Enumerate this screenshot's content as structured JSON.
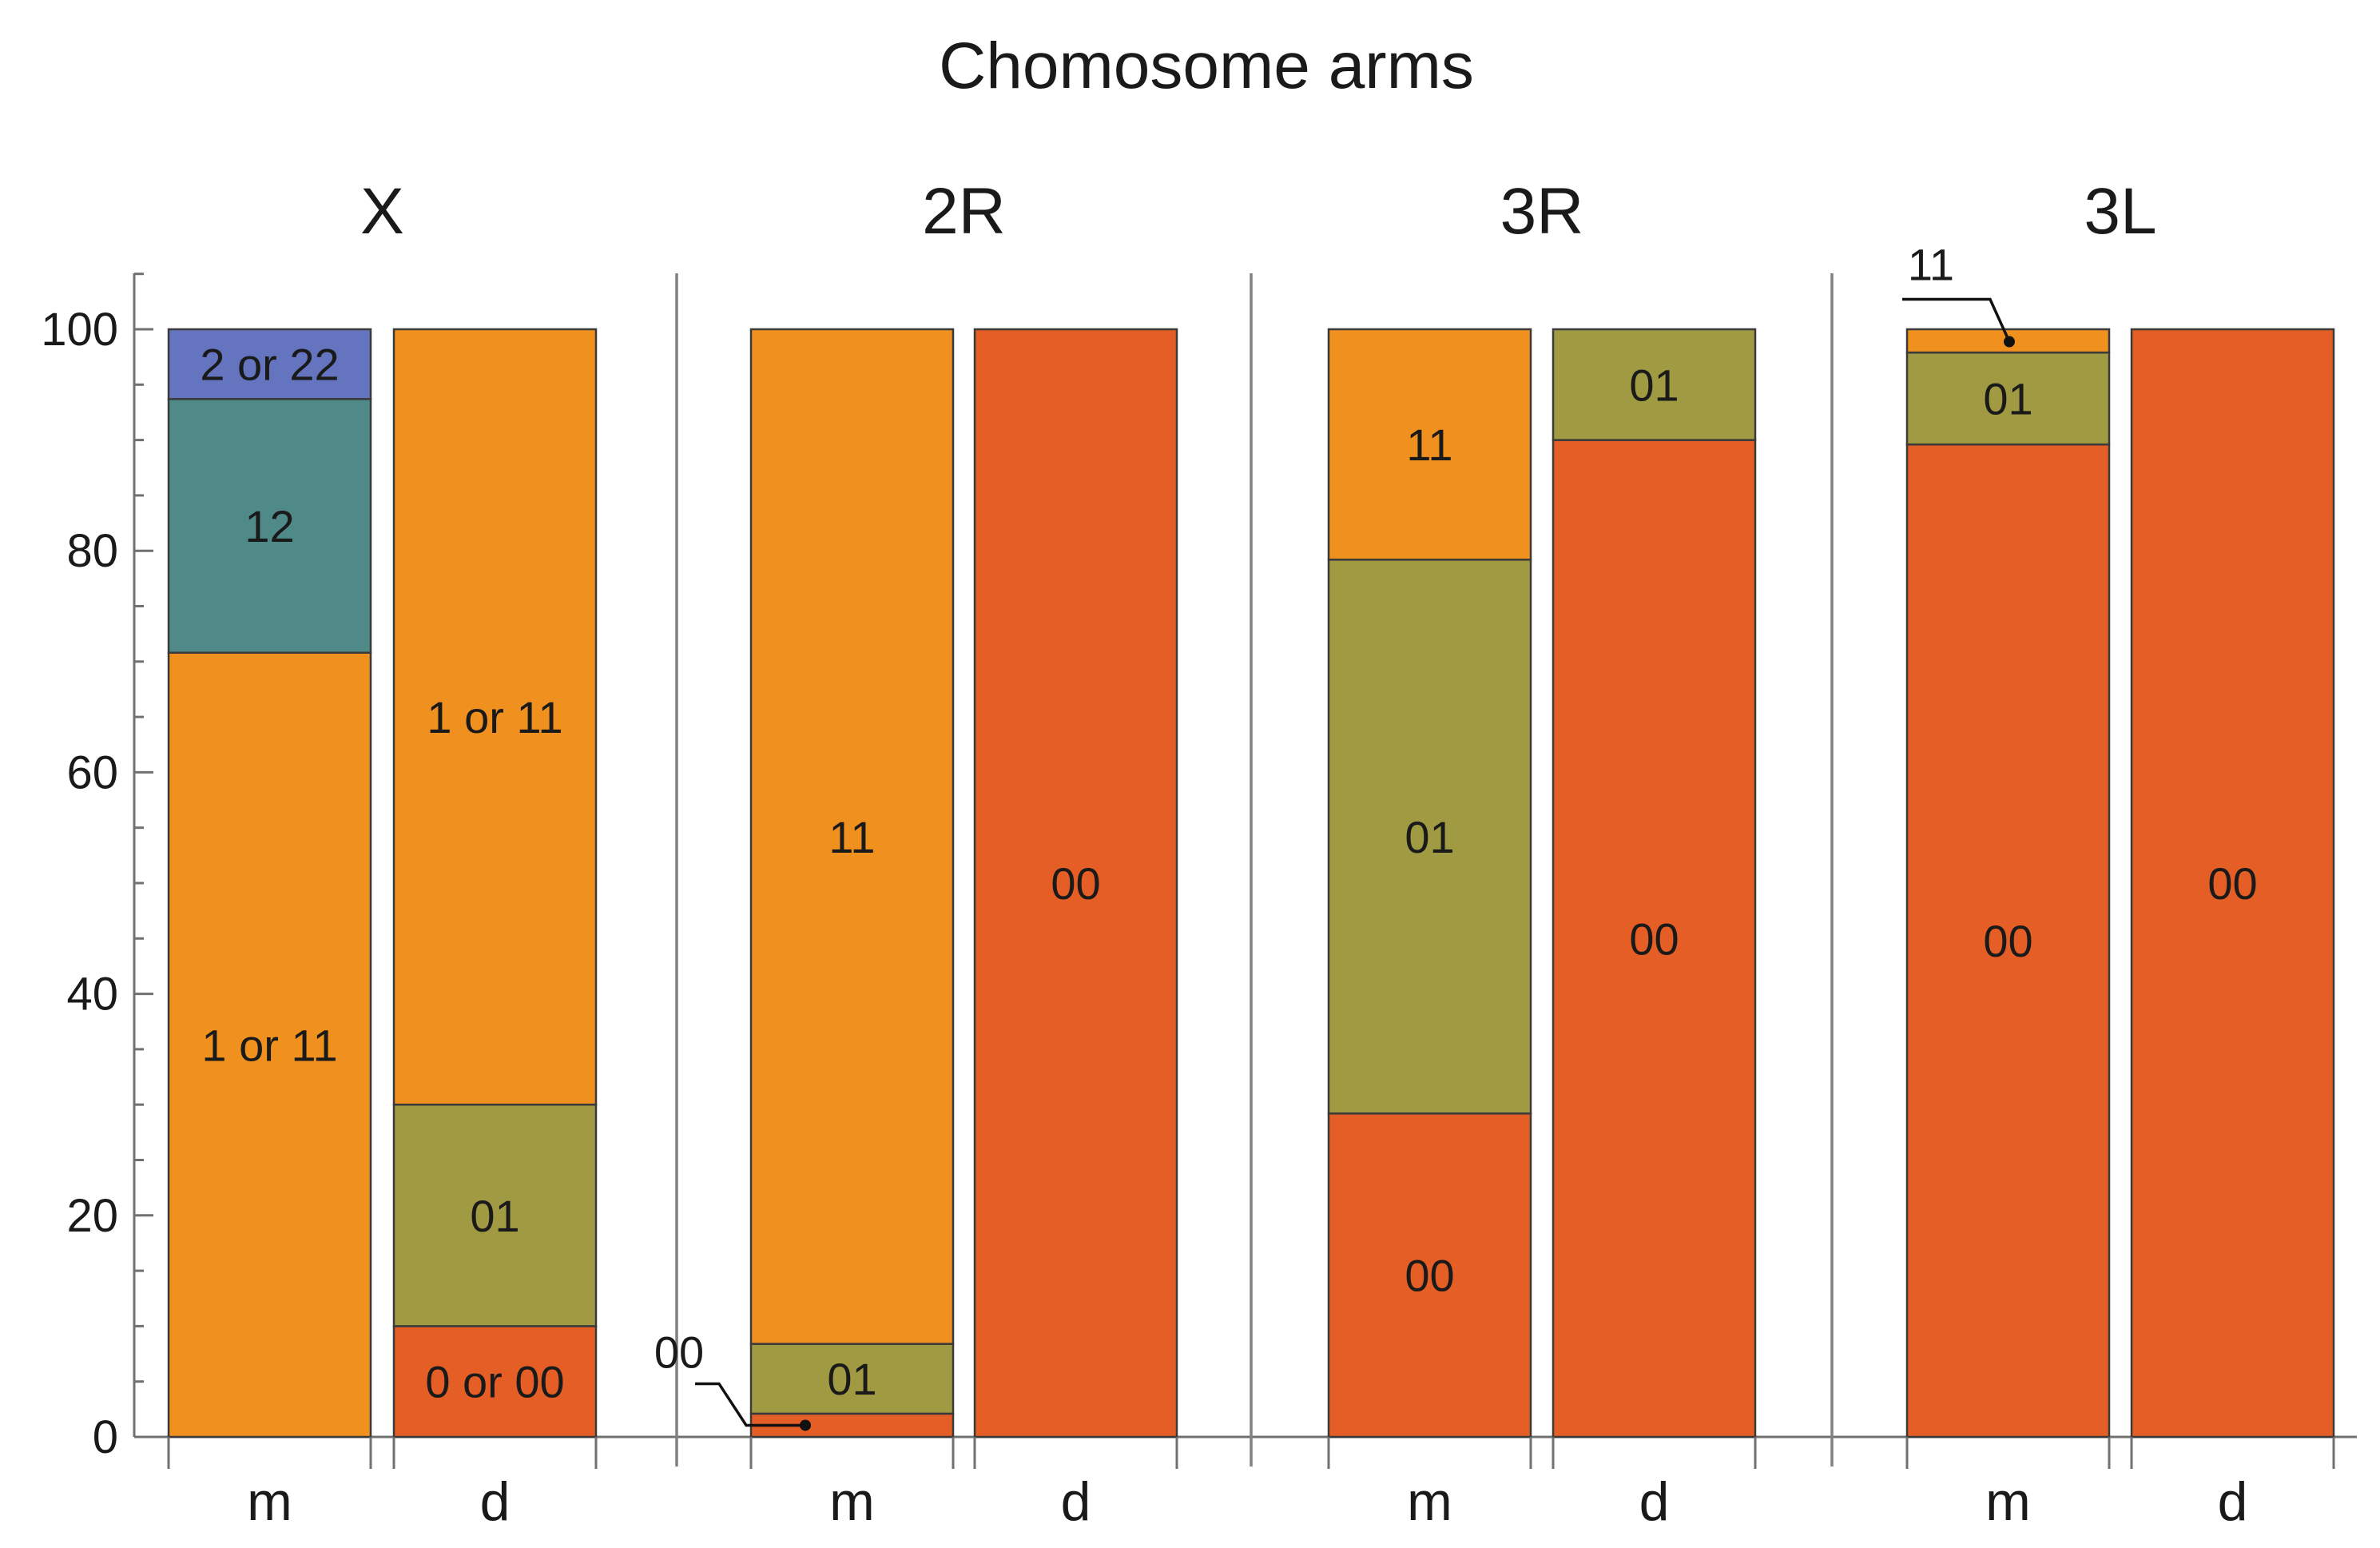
{
  "chart_data": {
    "type": "stacked-bar",
    "title": "Chomosome arms",
    "ylim": [
      0,
      100
    ],
    "yticks": [
      0,
      20,
      40,
      60,
      80,
      100
    ],
    "colors": {
      "orange": "#f0901f",
      "red": "#e55e25",
      "olive": "#a09a42",
      "teal": "#4f8a88",
      "blue": "#6474bf"
    },
    "panels": [
      {
        "name": "X",
        "bars": [
          {
            "category": "m",
            "segments": [
              {
                "label": "1 or 11",
                "value": 70.8,
                "color": "#f0901f"
              },
              {
                "label": "12",
                "value": 22.9,
                "color": "#4f8a88"
              },
              {
                "label": "2 or 22",
                "value": 6.3,
                "color": "#6474bf"
              }
            ]
          },
          {
            "category": "d",
            "segments": [
              {
                "label": "0 or 00",
                "value": 10.0,
                "color": "#e55e25"
              },
              {
                "label": "01",
                "value": 20.0,
                "color": "#a09a42"
              },
              {
                "label": "1 or 11",
                "value": 70.0,
                "color": "#f0901f"
              }
            ]
          }
        ]
      },
      {
        "name": "2R",
        "bars": [
          {
            "category": "m",
            "segments": [
              {
                "label": "00",
                "value": 2.1,
                "color": "#e55e25",
                "callout": "left"
              },
              {
                "label": "01",
                "value": 6.3,
                "color": "#a09a42"
              },
              {
                "label": "11",
                "value": 91.6,
                "color": "#f0901f"
              }
            ]
          },
          {
            "category": "d",
            "segments": [
              {
                "label": "00",
                "value": 100.0,
                "color": "#e55e25"
              }
            ]
          }
        ]
      },
      {
        "name": "3R",
        "bars": [
          {
            "category": "m",
            "segments": [
              {
                "label": "00",
                "value": 29.2,
                "color": "#e55e25"
              },
              {
                "label": "01",
                "value": 50.0,
                "color": "#a09a42"
              },
              {
                "label": "11",
                "value": 20.8,
                "color": "#f0901f"
              }
            ]
          },
          {
            "category": "d",
            "segments": [
              {
                "label": "00",
                "value": 90.0,
                "color": "#e55e25"
              },
              {
                "label": "01",
                "value": 10.0,
                "color": "#a09a42"
              }
            ]
          }
        ]
      },
      {
        "name": "3L",
        "bars": [
          {
            "category": "m",
            "segments": [
              {
                "label": "00",
                "value": 89.6,
                "color": "#e55e25"
              },
              {
                "label": "01",
                "value": 8.3,
                "color": "#a09a42"
              },
              {
                "label": "11",
                "value": 2.1,
                "color": "#f0901f",
                "callout": "top"
              }
            ]
          },
          {
            "category": "d",
            "segments": [
              {
                "label": "00",
                "value": 100.0,
                "color": "#e55e25"
              }
            ]
          }
        ]
      }
    ]
  }
}
